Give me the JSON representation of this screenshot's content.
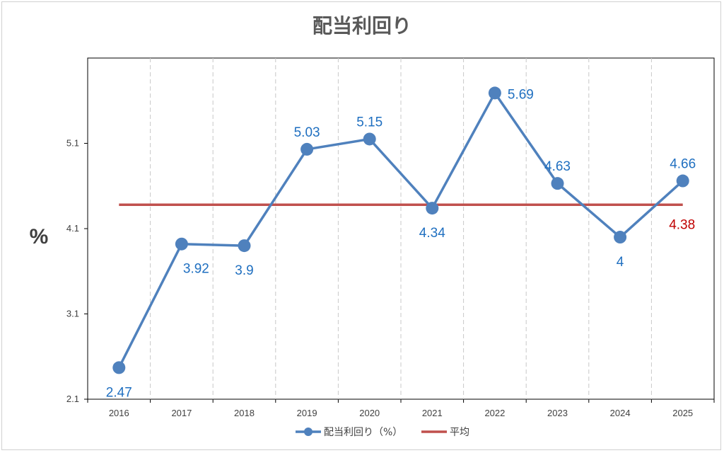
{
  "chart_data": {
    "type": "line",
    "title": "配当利回り",
    "ylabel": "%",
    "xlabel": "",
    "categories": [
      "2016",
      "2017",
      "2018",
      "2019",
      "2020",
      "2021",
      "2022",
      "2023",
      "2024",
      "2025"
    ],
    "ylim": [
      2.1,
      6.1
    ],
    "yticks": [
      "2.1",
      "3.1",
      "4.1",
      "5.1"
    ],
    "ytick_values": [
      2.1,
      3.1,
      4.1,
      5.1
    ],
    "grid_x": true,
    "legend_placement": "bottom",
    "series": [
      {
        "name": "配当利回り（%）",
        "color": "#4f81bd",
        "values": [
          2.47,
          3.92,
          3.9,
          5.03,
          5.15,
          4.34,
          5.69,
          4.63,
          4.0,
          4.66
        ],
        "labels": [
          "2.47",
          "3.92",
          "3.9",
          "5.03",
          "5.15",
          "4.34",
          "5.69",
          "4.63",
          "4",
          "4.66"
        ],
        "label_color": "#1f6fc0"
      },
      {
        "name": "平均",
        "color": "#c0504d",
        "values": [
          4.38,
          4.38,
          4.38,
          4.38,
          4.38,
          4.38,
          4.38,
          4.38,
          4.38,
          4.38
        ],
        "end_label": "4.38",
        "label_color": "#c00000"
      }
    ]
  }
}
